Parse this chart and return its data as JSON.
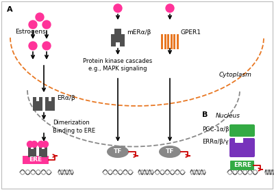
{
  "title_A": "A",
  "title_B": "B",
  "pink": "#FF3399",
  "dark_gray": "#505050",
  "medium_gray": "#888888",
  "orange": "#E87722",
  "green": "#33AA44",
  "purple": "#7733BB",
  "red_arrow": "#CC0000",
  "cytoplasm_label": "Cytoplasm",
  "nucleus_label": "Nucleus",
  "estrogens_label": "Estrogens",
  "mER_label": "mERα/β",
  "GPER1_label": "GPER1",
  "PK_label": "Protein kinase cascades\ne.g., MAPK signaling",
  "ER_label": "ERα/β",
  "dimer_label": "Dimerization\nBinding to ERE",
  "ERE_label": "ERE",
  "ERRE_label": "ERRE",
  "TF_label": "TF",
  "PGC_label": "PGC-1α/β",
  "ERR_label": "ERRα/β/γ"
}
